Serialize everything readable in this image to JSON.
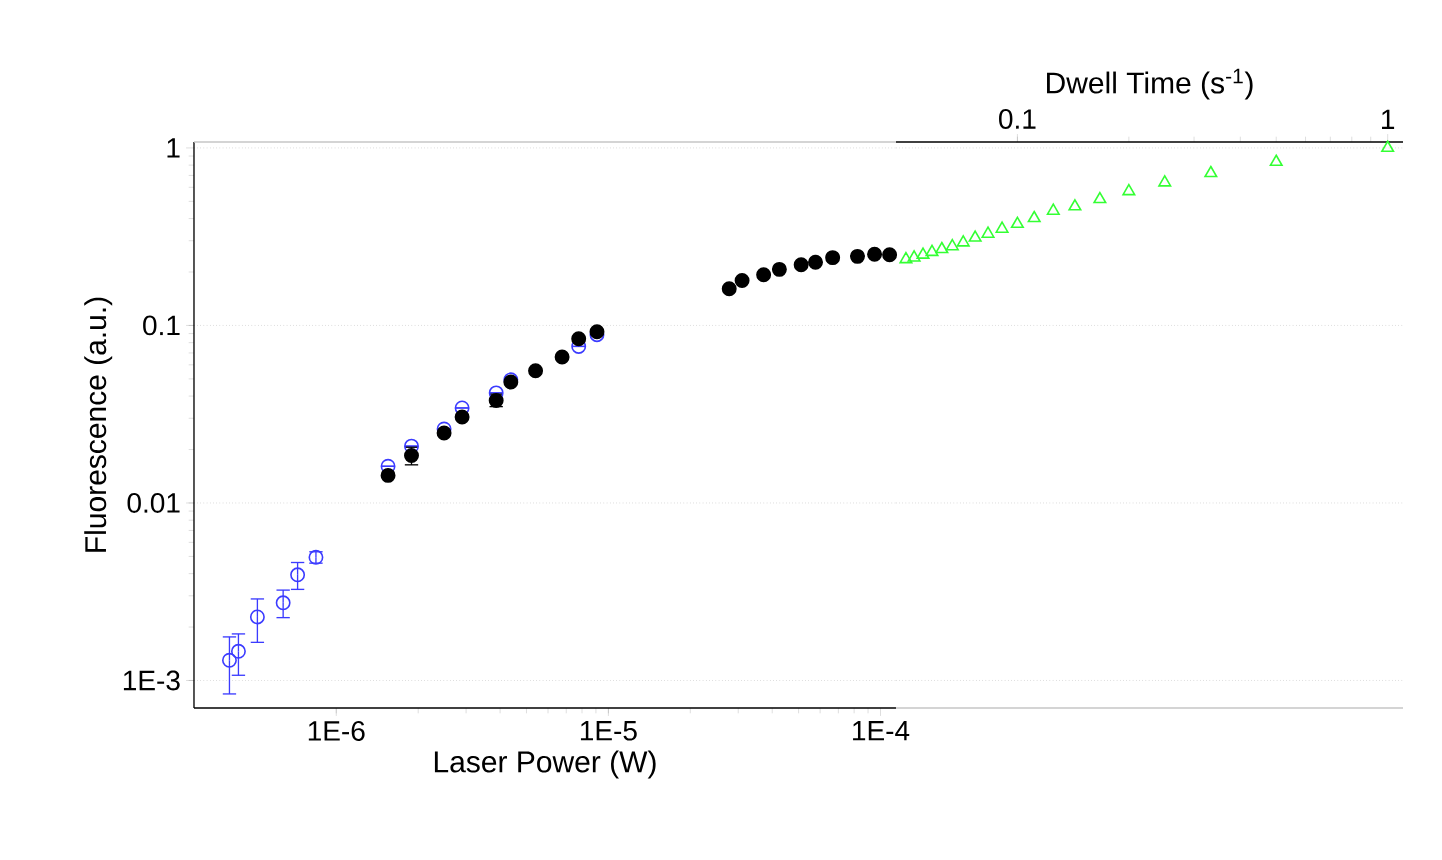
{
  "chart_data": [
    {
      "type": "scatter",
      "xlabel": "Laser Power (W)",
      "ylabel": "Fluorescence (a.u.)",
      "xlim": [
        3e-07,
        0.000114
      ],
      "ylim": [
        0.0007,
        1.08
      ],
      "xticks": [
        {
          "value": 1e-06,
          "label": "1E-6"
        },
        {
          "value": 1e-05,
          "label": "1E-5"
        },
        {
          "value": 0.0001,
          "label": "1E-4"
        }
      ],
      "yticks": [
        {
          "value": 0.001,
          "label": "1E-3"
        },
        0.01,
        0.1,
        1
      ],
      "log": "xy",
      "grid": "y",
      "series": [
        {
          "color": "#3b3bff",
          "marker": "circle",
          "x": [
            4.05e-07,
            4.37e-07,
            5.13e-07,
            6.38e-07,
            7.21e-07,
            8.42e-07,
            1.55e-06,
            1.89e-06,
            2.49e-06,
            2.9e-06,
            3.87e-06,
            4.38e-06,
            5.4e-06,
            6.76e-06,
            7.78e-06,
            9.08e-06
          ],
          "values": [
            0.0013,
            0.00146,
            0.00228,
            0.00274,
            0.00394,
            0.00494,
            0.0161,
            0.0209,
            0.0261,
            0.0343,
            0.0417,
            0.0494,
            null,
            null,
            0.0762,
            0.0887
          ],
          "errors": [
            [
              0.00084,
              0.00176
            ],
            [
              0.00107,
              0.00183
            ],
            [
              0.00164,
              0.00288
            ],
            [
              0.00226,
              0.00323
            ],
            [
              0.00326,
              0.00462
            ],
            [
              0.00458,
              0.00531
            ],
            null,
            null,
            null,
            null,
            null,
            null,
            null,
            null,
            null,
            null
          ]
        },
        {
          "color": "#000000",
          "marker": "circle",
          "x": [
            1.55e-06,
            1.89e-06,
            2.49e-06,
            2.9e-06,
            3.87e-06,
            4.38e-06,
            5.4e-06,
            6.76e-06,
            7.78e-06,
            9.08e-06,
            2.78e-05,
            3.1e-05,
            3.72e-05,
            4.25e-05,
            5.11e-05,
            5.77e-05,
            6.67e-05,
            8.23e-05,
            9.51e-05,
            0.000108
          ],
          "values": [
            0.0143,
            0.0185,
            0.0248,
            0.0305,
            0.0378,
            0.048,
            0.0556,
            0.0664,
            0.0842,
            0.0922,
            0.161,
            0.179,
            0.193,
            0.207,
            0.22,
            0.227,
            0.241,
            0.245,
            0.252,
            0.25
          ],
          "errors": [
            null,
            [
              0.0164,
              0.0206
            ],
            null,
            null,
            [
              0.0349,
              0.041
            ],
            null,
            null,
            null,
            null,
            null,
            null,
            null,
            null,
            null,
            null,
            null,
            null,
            null,
            null,
            null
          ]
        }
      ]
    },
    {
      "type": "scatter",
      "xlabel": "Dwell Time (s$^{-1}$)",
      "xlim": [
        0.047,
        1.1
      ],
      "ylim": [
        0.0007,
        1.08
      ],
      "xticks": [
        0.1,
        1
      ],
      "yticks": [
        0.001,
        0.01,
        0.1,
        1
      ],
      "log": "xy",
      "grid": "y",
      "tick_labels": "x",
      "series": [
        {
          "color": "#33ff33",
          "marker": "triangle",
          "x": [
            0.05,
            0.0526,
            0.0556,
            0.0588,
            0.0625,
            0.0667,
            0.0714,
            0.0769,
            0.0833,
            0.0909,
            0.1,
            0.111,
            0.125,
            0.143,
            0.167,
            0.2,
            0.25,
            0.333,
            0.5,
            1
          ],
          "values": [
            0.236,
            0.241,
            0.25,
            0.259,
            0.269,
            0.279,
            0.293,
            0.312,
            0.328,
            0.35,
            0.373,
            0.402,
            0.442,
            0.468,
            0.514,
            0.57,
            0.638,
            0.721,
            0.834,
            1.0
          ]
        }
      ]
    }
  ]
}
